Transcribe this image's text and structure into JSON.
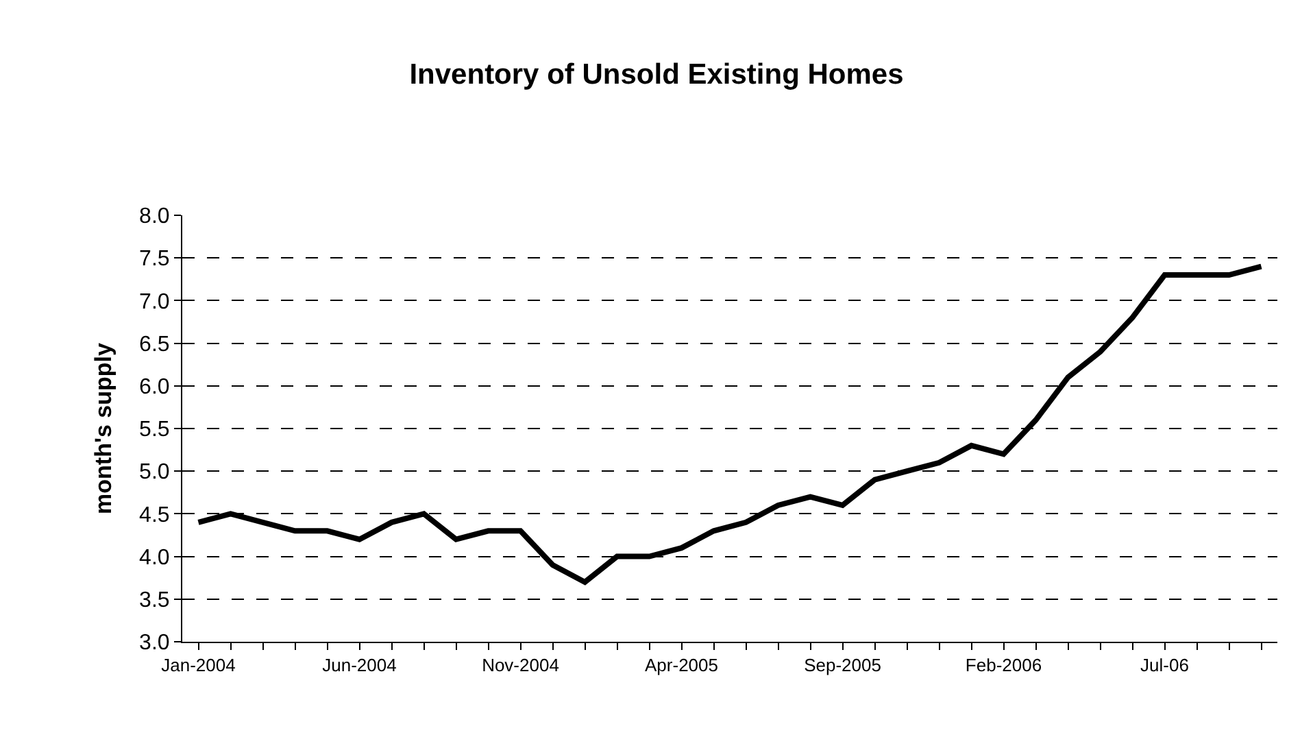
{
  "chart_data": {
    "type": "line",
    "title": "Inventory of Unsold Existing Homes",
    "ylabel": "month's supply",
    "categories": [
      "Jan-2004",
      null,
      null,
      null,
      null,
      "Jun-2004",
      null,
      null,
      null,
      null,
      "Nov-2004",
      null,
      null,
      null,
      null,
      "Apr-2005",
      null,
      null,
      null,
      null,
      "Sep-2005",
      null,
      null,
      null,
      null,
      "Feb-2006",
      null,
      null,
      null,
      null,
      "Jul-06",
      null,
      null,
      null
    ],
    "series": [
      {
        "color": "#000000",
        "values": [
          4.4,
          4.5,
          4.4,
          4.3,
          4.3,
          4.2,
          4.4,
          4.5,
          4.2,
          4.3,
          4.3,
          3.9,
          3.7,
          4.0,
          4.0,
          4.1,
          4.3,
          4.4,
          4.6,
          4.7,
          4.6,
          4.9,
          5.0,
          5.1,
          5.3,
          5.2,
          5.6,
          6.1,
          6.4,
          6.8,
          7.3,
          7.3,
          7.3,
          7.4
        ]
      }
    ],
    "ylim": [
      3.0,
      8.0
    ],
    "yticks": [
      {
        "value": 3.0,
        "label": "3.0"
      },
      {
        "value": 3.5,
        "label": "3.5"
      },
      {
        "value": 4.0,
        "label": "4.0"
      },
      {
        "value": 4.5,
        "label": "4.5"
      },
      {
        "value": 5.0,
        "label": "5.0"
      },
      {
        "value": 5.5,
        "label": "5.5"
      },
      {
        "value": 6.0,
        "label": "6.0"
      },
      {
        "value": 6.5,
        "label": "6.5"
      },
      {
        "value": 7.0,
        "label": "7.0"
      },
      {
        "value": 7.5,
        "label": "7.5"
      },
      {
        "value": 8.0,
        "label": "8.0"
      }
    ],
    "grid": "y",
    "line_style": "solid",
    "marker": "none"
  }
}
